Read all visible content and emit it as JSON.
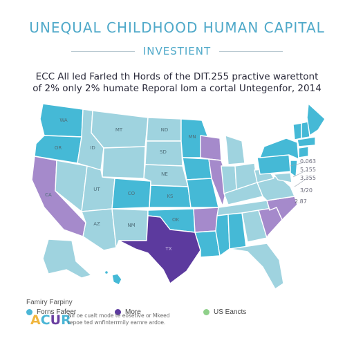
{
  "title": "UNEQUAL CHILDHOOD HUMAN CAPITAL",
  "subtitle": "INVESTIENT",
  "headline": {
    "line1": "ECC All led Farled th Hords of the DIT.255 practive warettont",
    "line2": "of 2% only 2% humate Reporal lom a cortal Untegenfor, 2014"
  },
  "colors": {
    "light": "#9fd3df",
    "medium": "#45b9d6",
    "lavender": "#a58acb",
    "deep": "#5c3a9e",
    "border": "#ffffff"
  },
  "state_labels": {
    "wa": "WA",
    "or": "OR",
    "ca": "CA",
    "id": "ID",
    "mt": "MT",
    "mn": "MN",
    "nd": "ND",
    "sd": "SD",
    "ut": "UT",
    "co": "CO",
    "ks": "KS",
    "ok": "OK",
    "az": "AZ",
    "nm": "NM",
    "tx": "TX",
    "ne": "NE"
  },
  "scale_labels": [
    "0.063",
    "5.155",
    "3.355",
    "3/20",
    "2.87"
  ],
  "legend": {
    "heading": "Famiry Farpiny",
    "items": [
      {
        "label": "Forns Fafeer",
        "color": "#4bb6d6"
      },
      {
        "label": "More",
        "color": "#5c3a9e"
      },
      {
        "label": "US Eancts",
        "color": "#8fd08a"
      }
    ]
  },
  "logo": {
    "a": "A",
    "c": "C",
    "u": "U",
    "r": "R"
  },
  "footnote": {
    "line1": "Nif oe cualt mode te eosetive or Mkeed",
    "line2": "repoe ted wnfinterrmily earnre ardoe."
  }
}
